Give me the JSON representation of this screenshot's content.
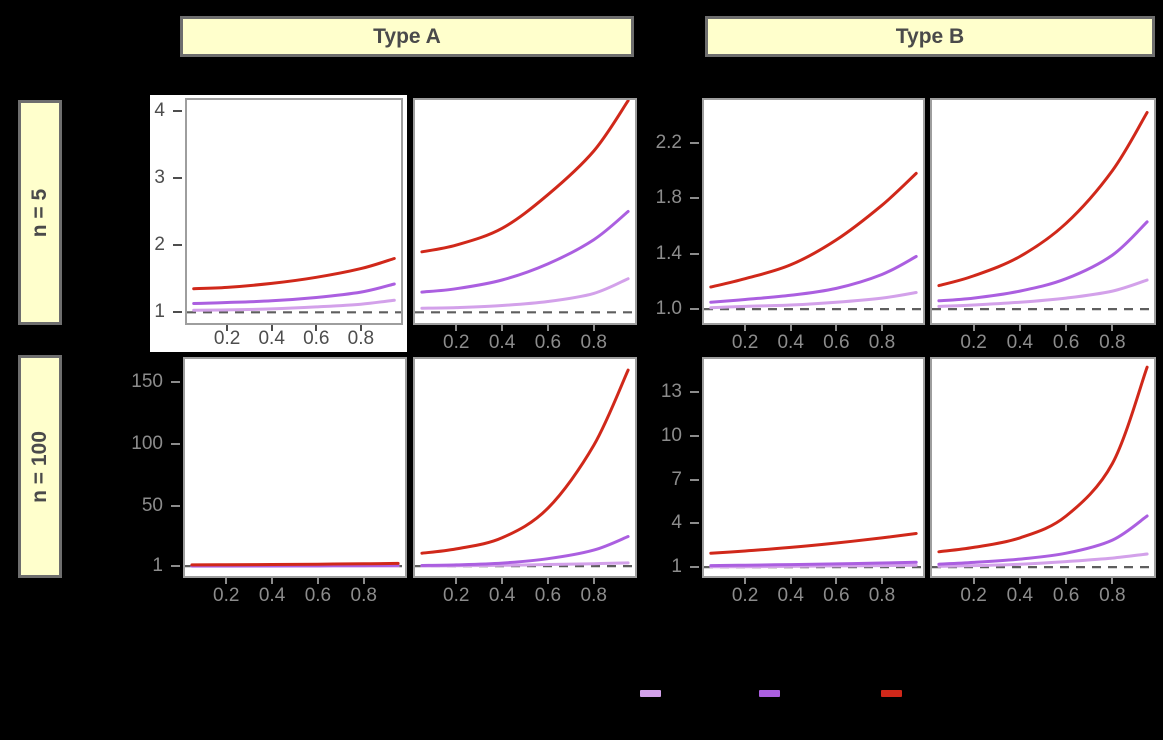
{
  "facets": {
    "columns": [
      "Type A",
      "Type B"
    ],
    "rows": [
      "n = 5",
      "n = 100"
    ]
  },
  "style": {
    "background": "#000000",
    "strip_fill": "#FFFFCC",
    "strip_border": "#6E6E6E",
    "strip_text": "#4A4A4A",
    "panel_fill": "#FFFFFF",
    "panel_border": "#9E9E9E",
    "tick_text_outside": "#8C8C8C",
    "tick_text_inside": "#4D4D4D",
    "reference_line_color": "#5E5E5E"
  },
  "legend": {
    "items": [
      {
        "name": "light-purple-line",
        "color": "#D3A1EA"
      },
      {
        "name": "purple-line",
        "color": "#AB5FE0"
      },
      {
        "name": "red-line",
        "color": "#D0281A"
      }
    ]
  },
  "chart_data": {
    "type": "line",
    "reference_line_y": 1,
    "x_domain": [
      0.02,
      0.98
    ],
    "x_ticks": [
      0.2,
      0.4,
      0.6,
      0.8
    ],
    "x_tick_labels": [
      "0.2",
      "0.4",
      "0.6",
      "0.8"
    ],
    "sample_x": [
      0.05,
      0.2,
      0.4,
      0.6,
      0.8,
      0.95
    ],
    "series_names": [
      "light-purple",
      "purple",
      "red"
    ],
    "series_colors": [
      "#D3A1EA",
      "#AB5FE0",
      "#D0281A"
    ],
    "panels": [
      {
        "id": "p1",
        "row": "n = 5",
        "col": "Type A",
        "panel_in_col": 1,
        "y_axis": "inside",
        "x_axis": "inside",
        "y_ticks": [
          1,
          2,
          3,
          4
        ],
        "y_tick_labels": [
          "1",
          "2",
          "3",
          "4"
        ],
        "y_domain": [
          0.84,
          4.16
        ],
        "series": [
          [
            1.03,
            1.035,
            1.05,
            1.08,
            1.12,
            1.18
          ],
          [
            1.13,
            1.145,
            1.17,
            1.22,
            1.3,
            1.42
          ],
          [
            1.35,
            1.37,
            1.43,
            1.52,
            1.65,
            1.8
          ]
        ]
      },
      {
        "id": "p2",
        "row": "n = 5",
        "col": "Type A",
        "panel_in_col": 2,
        "y_axis": "none",
        "x_axis": "outside",
        "y_domain": [
          0.84,
          4.16
        ],
        "series": [
          [
            1.06,
            1.07,
            1.1,
            1.16,
            1.28,
            1.5
          ],
          [
            1.3,
            1.35,
            1.48,
            1.72,
            2.08,
            2.5
          ],
          [
            1.9,
            2.0,
            2.25,
            2.75,
            3.4,
            4.15
          ]
        ]
      },
      {
        "id": "p3",
        "row": "n = 5",
        "col": "Type B",
        "panel_in_col": 1,
        "y_axis": "outside",
        "x_axis": "outside",
        "y_ticks": [
          1.0,
          1.4,
          1.8,
          2.2
        ],
        "y_tick_labels": [
          "1.0",
          "1.4",
          "1.8",
          "2.2"
        ],
        "y_domain": [
          0.9,
          2.51
        ],
        "series": [
          [
            1.01,
            1.02,
            1.03,
            1.05,
            1.08,
            1.12
          ],
          [
            1.05,
            1.07,
            1.1,
            1.15,
            1.25,
            1.38
          ],
          [
            1.16,
            1.22,
            1.32,
            1.5,
            1.75,
            1.98
          ]
        ]
      },
      {
        "id": "p4",
        "row": "n = 5",
        "col": "Type B",
        "panel_in_col": 2,
        "y_axis": "none",
        "x_axis": "outside",
        "y_domain": [
          0.9,
          2.51
        ],
        "series": [
          [
            1.02,
            1.03,
            1.05,
            1.08,
            1.13,
            1.21
          ],
          [
            1.06,
            1.08,
            1.13,
            1.22,
            1.39,
            1.63
          ],
          [
            1.17,
            1.24,
            1.38,
            1.62,
            2.0,
            2.42
          ]
        ]
      },
      {
        "id": "p5",
        "row": "n = 100",
        "col": "Type A",
        "panel_in_col": 1,
        "y_axis": "outside",
        "x_axis": "outside",
        "y_ticks": [
          1,
          50,
          100,
          150
        ],
        "y_tick_labels": [
          "1",
          "50",
          "100",
          "150"
        ],
        "y_domain": [
          -7,
          169
        ],
        "series": [
          [
            1.02,
            1.03,
            1.05,
            1.07,
            1.09,
            1.12
          ],
          [
            1.1,
            1.15,
            1.22,
            1.32,
            1.45,
            1.6
          ],
          [
            2.0,
            2.1,
            2.3,
            2.6,
            2.9,
            3.2
          ]
        ]
      },
      {
        "id": "p6",
        "row": "n = 100",
        "col": "Type A",
        "panel_in_col": 2,
        "y_axis": "none",
        "x_axis": "outside",
        "y_domain": [
          -7,
          169
        ],
        "series": [
          [
            1.1,
            1.3,
            1.7,
            2.3,
            3.0,
            3.6
          ],
          [
            1.5,
            2.0,
            3.5,
            7.0,
            14,
            25
          ],
          [
            11.5,
            15,
            24,
            48,
            99,
            160
          ]
        ]
      },
      {
        "id": "p7",
        "row": "n = 100",
        "col": "Type B",
        "panel_in_col": 1,
        "y_axis": "outside",
        "x_axis": "outside",
        "y_ticks": [
          1,
          4,
          7,
          10,
          13
        ],
        "y_tick_labels": [
          "1",
          "4",
          "7",
          "10",
          "13"
        ],
        "y_domain": [
          0.39,
          15.26
        ],
        "series": [
          [
            1.02,
            1.03,
            1.05,
            1.08,
            1.1,
            1.13
          ],
          [
            1.1,
            1.13,
            1.17,
            1.22,
            1.28,
            1.33
          ],
          [
            1.95,
            2.1,
            2.35,
            2.65,
            3.0,
            3.3
          ]
        ]
      },
      {
        "id": "p8",
        "row": "n = 100",
        "col": "Type B",
        "panel_in_col": 2,
        "y_axis": "none",
        "x_axis": "outside",
        "y_domain": [
          0.39,
          15.26
        ],
        "series": [
          [
            1.05,
            1.1,
            1.2,
            1.38,
            1.62,
            1.9
          ],
          [
            1.2,
            1.32,
            1.55,
            1.95,
            2.85,
            4.5
          ],
          [
            2.05,
            2.35,
            3.0,
            4.5,
            8.1,
            14.7
          ]
        ]
      }
    ]
  }
}
